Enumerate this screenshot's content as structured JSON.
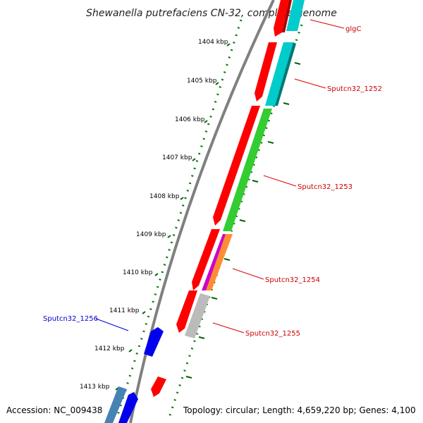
{
  "title": "Shewanella putrefaciens CN-32, complete genome",
  "footer": {
    "accession": "Accession: NC_009438",
    "topology": "Topology: circular; Length: 4,659,220 bp; Genes: 4,100"
  },
  "ticks": [
    "1404 kbp",
    "1405 kbp",
    "1406 kbp",
    "1407 kbp",
    "1408 kbp",
    "1409 kbp",
    "1410 kbp",
    "1411 kbp",
    "1412 kbp",
    "1413 kbp"
  ],
  "gene_labels": [
    {
      "text": "glgC",
      "color": "#cc0000"
    },
    {
      "text": "Sputcn32_1252",
      "color": "#cc0000"
    },
    {
      "text": "Sputcn32_1253",
      "color": "#cc0000"
    },
    {
      "text": "Sputcn32_1254",
      "color": "#cc0000"
    },
    {
      "text": "Sputcn32_1255",
      "color": "#cc0000"
    },
    {
      "text": "Sputcn32_1256",
      "color": "#0000cc"
    }
  ],
  "colors": {
    "backbone": "#808080",
    "cds": "#ff0000",
    "tick": "#006400",
    "gc": "#00a000",
    "cyan": "#00cccc",
    "green": "#33cc33",
    "grey": "#bbbbbb",
    "blue": "#0000ee",
    "steel": "#4682b4"
  }
}
